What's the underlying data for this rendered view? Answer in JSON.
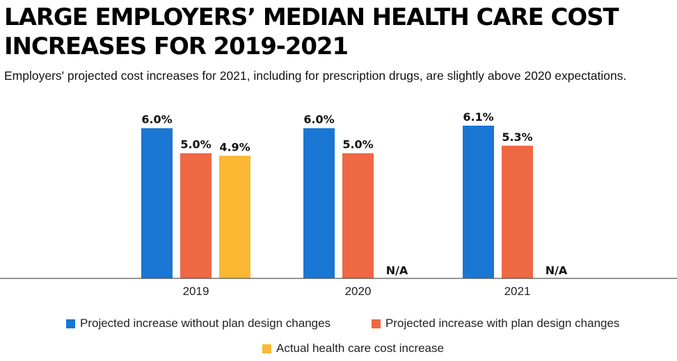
{
  "title": "LARGE EMPLOYERS’ MEDIAN HEALTH CARE COST INCREASES FOR 2019-2021",
  "subtitle": "Employers' projected cost increases for 2021, including for prescription drugs, are slightly above 2020 expectations.",
  "colors": {
    "without": "#1976d2",
    "with": "#ef6844",
    "actual": "#fab833",
    "axis": "#555555"
  },
  "legend": [
    {
      "label": "Projected increase without plan design changes",
      "color": "#1976d2"
    },
    {
      "label": "Projected increase with plan design changes",
      "color": "#ef6844"
    },
    {
      "label": "Actual health care cost increase",
      "color": "#fab833"
    }
  ],
  "chart_data": {
    "type": "bar",
    "title": "LARGE EMPLOYERS’ MEDIAN HEALTH CARE COST INCREASES FOR 2019-2021",
    "xlabel": "",
    "ylabel": "",
    "ylim": [
      0,
      6.1
    ],
    "categories": [
      "2019",
      "2020",
      "2021"
    ],
    "series": [
      {
        "name": "Projected increase without plan design changes",
        "values": [
          6.0,
          6.0,
          6.1
        ],
        "labels": [
          "6.0%",
          "6.0%",
          "6.1%"
        ]
      },
      {
        "name": "Projected increase with plan design changes",
        "values": [
          5.0,
          5.0,
          5.3
        ],
        "labels": [
          "5.0%",
          "5.0%",
          "5.3%"
        ]
      },
      {
        "name": "Actual health care cost increase",
        "values": [
          4.9,
          null,
          null
        ],
        "labels": [
          "4.9%",
          "N/A",
          "N/A"
        ]
      }
    ]
  }
}
